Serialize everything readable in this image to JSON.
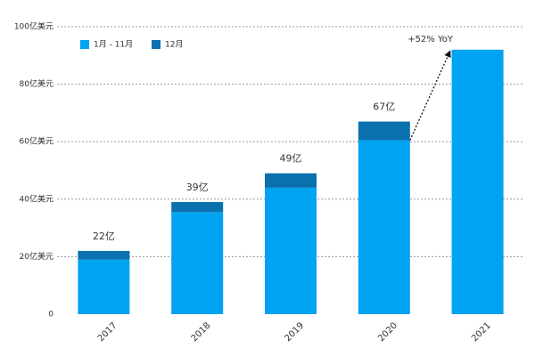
{
  "chart_data": {
    "type": "stacked_bar",
    "categories": [
      "2017",
      "2018",
      "2019",
      "2020",
      "2021"
    ],
    "series": [
      {
        "name": "1月 - 11月",
        "color": "#00a2f2",
        "values": [
          19,
          35.5,
          44,
          60.5,
          92
        ]
      },
      {
        "name": "12月",
        "color": "#0b70ae",
        "values": [
          3,
          3.5,
          5,
          6.5,
          null
        ]
      }
    ],
    "totals": {
      "values": [
        22,
        39,
        49,
        67
      ],
      "value_labels": [
        "22亿",
        "39亿",
        "49亿",
        "67亿"
      ]
    },
    "annotation": "+52% YoY",
    "ylim": [
      0,
      100
    ],
    "yticks": [
      0,
      {
        "value": 20,
        "label": "20亿美元"
      },
      {
        "value": 40,
        "label": "40亿美元"
      },
      {
        "value": 60,
        "label": "60亿美元"
      },
      {
        "value": 80,
        "label": "80亿美元"
      },
      {
        "value": 100,
        "label": "100亿美元"
      }
    ],
    "grid": true,
    "legend": "top-left"
  }
}
